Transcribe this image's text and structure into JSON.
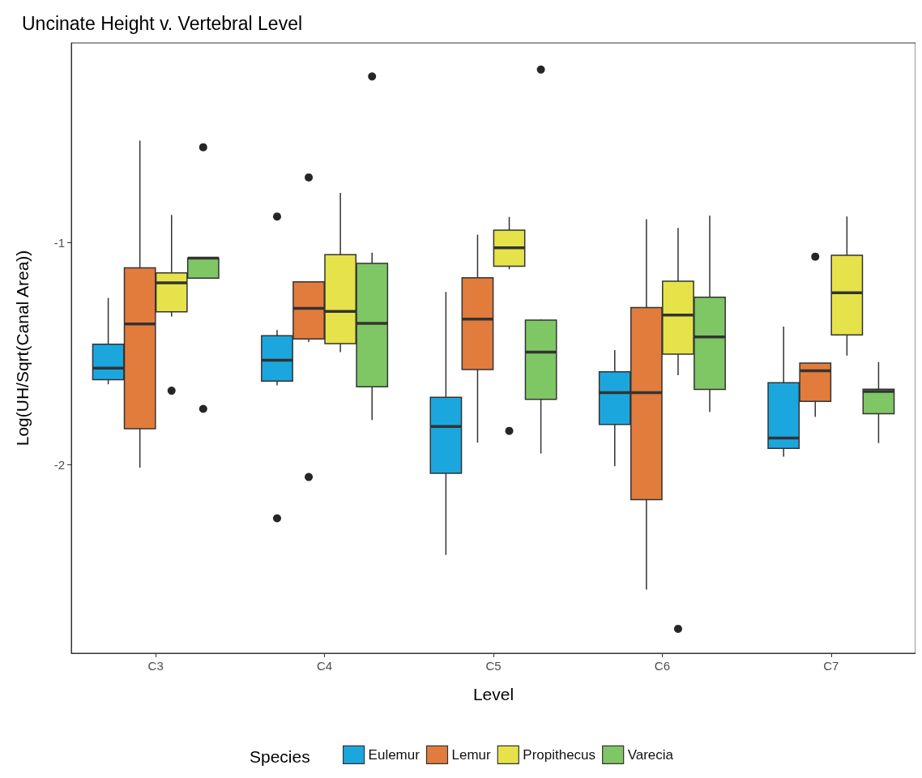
{
  "chart_data": {
    "type": "box",
    "title": "Uncinate Height v. Vertebral Level",
    "xlabel": "Level",
    "ylabel": "Log(UH/Sqrt(Canal Area))",
    "legend_title": "Species",
    "legend": "bottom",
    "grid": false,
    "categories": [
      "C3",
      "C4",
      "C5",
      "C6",
      "C7"
    ],
    "ylim": [
      -2.85,
      -0.1
    ],
    "yticks": [
      -2,
      -1
    ],
    "series": [
      {
        "name": "Eulemur",
        "color": "#1ba7de",
        "boxes": [
          {
            "low": -1.638,
            "q1": -1.617,
            "median": -1.565,
            "q3": -1.458,
            "high": -1.249
          },
          {
            "low": -1.643,
            "q1": -1.624,
            "median": -1.53,
            "q3": -1.419,
            "high": -1.394,
            "outliers": [
              -0.882,
              -2.242
            ]
          },
          {
            "low": -2.407,
            "q1": -2.039,
            "median": -1.828,
            "q3": -1.697,
            "high": -1.222
          },
          {
            "low": -2.007,
            "q1": -1.819,
            "median": -1.676,
            "q3": -1.582,
            "high": -1.484
          },
          {
            "low": -1.964,
            "q1": -1.927,
            "median": -1.88,
            "q3": -1.631,
            "high": -1.378
          }
        ]
      },
      {
        "name": "Lemur",
        "color": "#e27c3c",
        "boxes": [
          {
            "low": -2.014,
            "q1": -1.838,
            "median": -1.366,
            "q3": -1.113,
            "high": -0.54
          },
          {
            "low": -1.448,
            "q1": -1.434,
            "median": -1.296,
            "q3": -1.176,
            "high": -1.176,
            "outliers": [
              -0.706,
              -2.056
            ]
          },
          {
            "low": -1.901,
            "q1": -1.572,
            "median": -1.344,
            "q3": -1.158,
            "high": -0.964
          },
          {
            "low": -2.563,
            "q1": -2.158,
            "median": -1.676,
            "q3": -1.292,
            "high": -0.894
          },
          {
            "low": -1.785,
            "q1": -1.715,
            "median": -1.577,
            "q3": -1.543,
            "high": -1.543,
            "outliers": [
              -1.063
            ]
          }
        ]
      },
      {
        "name": "Propithecus",
        "color": "#e6e34a",
        "boxes": [
          {
            "low": -1.333,
            "q1": -1.312,
            "median": -1.181,
            "q3": -1.136,
            "high": -0.875,
            "outliers": [
              -1.667
            ]
          },
          {
            "low": -1.493,
            "q1": -1.455,
            "median": -1.31,
            "q3": -1.054,
            "high": -0.776
          },
          {
            "low": -1.12,
            "q1": -1.106,
            "median": -1.023,
            "q3": -0.944,
            "high": -0.884,
            "outliers": [
              -1.848
            ]
          },
          {
            "low": -1.597,
            "q1": -1.502,
            "median": -1.326,
            "q3": -1.174,
            "high": -0.934,
            "outliers": [
              -2.74
            ]
          },
          {
            "low": -1.509,
            "q1": -1.416,
            "median": -1.226,
            "q3": -1.057,
            "high": -0.882
          }
        ]
      },
      {
        "name": "Varecia",
        "color": "#7fc664",
        "boxes": [
          {
            "low": -1.16,
            "q1": -1.16,
            "median": -1.07,
            "q3": -1.07,
            "high": -1.07,
            "outliers": [
              -0.57,
              -1.749
            ]
          },
          {
            "low": -1.799,
            "q1": -1.649,
            "median": -1.364,
            "q3": -1.093,
            "high": -1.045,
            "outliers": [
              -0.251
            ]
          },
          {
            "low": -1.95,
            "q1": -1.706,
            "median": -1.493,
            "q3": -1.349,
            "high": -1.346,
            "outliers": [
              -0.22
            ]
          },
          {
            "low": -1.763,
            "q1": -1.661,
            "median": -1.425,
            "q3": -1.246,
            "high": -0.878
          },
          {
            "low": -1.903,
            "q1": -1.771,
            "median": -1.67,
            "q3": -1.66,
            "high": -1.538
          }
        ]
      }
    ]
  }
}
